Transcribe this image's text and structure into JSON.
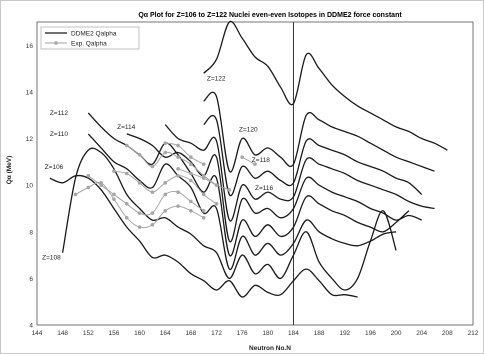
{
  "chart_data": {
    "type": "line",
    "title": "Qα Plot for Z=106 to Z=122 Nuclei even-even Isotopes in DDME2 force constant",
    "xlabel": "Neutron No.N",
    "ylabel": "Qα (MeV)",
    "xlim": [
      144,
      212
    ],
    "ylim": [
      4,
      17
    ],
    "xticks": [
      144,
      148,
      152,
      156,
      160,
      164,
      168,
      172,
      176,
      180,
      184,
      188,
      192,
      196,
      200,
      204,
      208,
      212
    ],
    "yticks": [
      4,
      6,
      8,
      10,
      12,
      14,
      16
    ],
    "grid": "on",
    "legend_position": "top-left",
    "legend": [
      "DDME2 Qalpha",
      "Exp. Qalpha"
    ],
    "reference_line_x": 184,
    "colors": {
      "ddme2": "#1a1a1a",
      "exp": "#a6a6a6",
      "grid": "#d9d9d9",
      "axis": "#555555"
    },
    "series": [
      {
        "name": "DDME2 Qalpha",
        "label": "Z=108",
        "x": [
          148,
          150,
          152,
          154,
          156,
          158,
          160,
          162,
          164,
          166,
          168,
          170,
          172,
          174,
          176,
          178,
          180,
          182,
          184,
          186,
          188,
          190,
          192,
          194,
          196,
          198,
          200
        ],
        "y": [
          7.1,
          10.3,
          11.5,
          11.4,
          10.7,
          9.6,
          9.0,
          8.5,
          8.6,
          8.2,
          7.9,
          7.4,
          7.1,
          6.0,
          7.0,
          6.2,
          6.6,
          6.0,
          7.0,
          8.0,
          6.7,
          6.0,
          5.5,
          6.0,
          7.6,
          8.9,
          7.2
        ]
      },
      {
        "name": "DDME2 Qalpha",
        "label": "Z=106",
        "x": [
          146,
          148,
          150,
          152,
          154,
          156,
          158,
          160,
          162,
          164,
          166,
          168,
          170,
          172,
          174,
          176,
          178,
          180,
          182,
          184,
          186,
          188,
          190,
          192,
          194
        ],
        "y": [
          10.3,
          10.1,
          10.4,
          10.3,
          9.8,
          9.0,
          8.2,
          7.6,
          6.9,
          7.0,
          6.7,
          6.2,
          5.9,
          5.5,
          5.9,
          5.2,
          5.7,
          5.4,
          5.3,
          5.9,
          6.4,
          5.9,
          5.3,
          5.3,
          5.2
        ]
      },
      {
        "name": "DDME2 Qalpha",
        "label": "Z=110",
        "x": [
          152,
          154,
          156,
          158,
          160,
          162,
          164,
          166,
          168,
          170,
          172,
          174,
          176,
          178,
          180,
          182,
          184,
          186,
          188,
          190,
          192,
          194,
          196,
          198,
          200
        ],
        "y": [
          12.2,
          11.6,
          11.0,
          10.7,
          10.2,
          9.9,
          10.9,
          10.4,
          9.9,
          8.8,
          9.0,
          6.4,
          7.8,
          7.0,
          7.5,
          7.0,
          7.5,
          8.5,
          8.0,
          7.7,
          7.5,
          7.4,
          7.6,
          7.9,
          8.0
        ]
      },
      {
        "name": "DDME2 Qalpha",
        "label": "Z=112",
        "x": [
          152,
          154,
          156,
          158,
          160,
          162,
          164,
          166,
          168,
          170,
          172,
          174,
          176,
          178,
          180,
          182,
          184,
          186,
          188,
          190,
          192,
          194,
          196,
          198,
          200,
          202
        ],
        "y": [
          13.1,
          12.5,
          12.0,
          11.7,
          11.3,
          10.9,
          11.8,
          11.3,
          10.5,
          9.7,
          10.3,
          7.0,
          8.5,
          7.8,
          8.3,
          7.8,
          8.2,
          9.5,
          9.2,
          8.9,
          8.7,
          8.4,
          8.2,
          8.0,
          8.4,
          8.9
        ]
      },
      {
        "name": "DDME2 Qalpha",
        "label": "Z=114",
        "x": [
          158,
          160,
          162,
          164,
          166,
          168,
          170,
          172,
          174,
          176,
          178,
          180,
          182,
          184,
          186,
          188,
          190,
          192,
          194,
          196,
          198,
          200,
          202,
          204
        ],
        "y": [
          12.2,
          12.0,
          11.7,
          11.2,
          11.4,
          11.0,
          10.4,
          11.2,
          7.6,
          9.4,
          8.8,
          9.0,
          8.6,
          9.0,
          10.3,
          10.0,
          9.7,
          9.5,
          9.3,
          9.0,
          8.8,
          8.5,
          8.7,
          8.5
        ]
      },
      {
        "name": "DDME2 Qalpha",
        "label": "Z=116",
        "x": [
          164,
          166,
          168,
          170,
          172,
          174,
          176,
          178,
          180,
          182,
          184,
          186,
          188,
          190,
          192,
          194,
          196,
          198,
          200,
          202,
          204,
          206
        ],
        "y": [
          12.6,
          12.0,
          11.8,
          11.5,
          11.9,
          8.5,
          10.0,
          9.4,
          9.7,
          9.4,
          9.5,
          11.1,
          10.9,
          10.7,
          10.5,
          10.2,
          10.0,
          9.8,
          9.6,
          9.3,
          9.1,
          9.0
        ]
      },
      {
        "name": "DDME2 Qalpha",
        "label": "Z=118",
        "x": [
          170,
          172,
          174,
          176,
          178,
          180,
          182,
          184,
          186,
          188,
          190,
          192,
          194,
          196,
          198,
          200,
          202,
          204
        ],
        "y": [
          12.6,
          12.8,
          9.6,
          10.8,
          10.3,
          10.6,
          10.2,
          10.1,
          11.9,
          11.7,
          11.5,
          11.3,
          11.0,
          10.8,
          10.6,
          10.3,
          10.1,
          9.6
        ]
      },
      {
        "name": "DDME2 Qalpha",
        "label": "Z=120",
        "x": [
          170,
          172,
          174,
          176,
          178,
          180,
          182,
          184,
          186,
          188,
          190,
          192,
          194,
          196,
          198,
          200,
          202,
          204,
          206
        ],
        "y": [
          13.6,
          13.8,
          10.6,
          12.0,
          11.3,
          11.6,
          11.2,
          10.9,
          13.0,
          12.8,
          12.5,
          12.3,
          12.1,
          11.8,
          11.5,
          11.2,
          11.0,
          10.8,
          10.6
        ]
      },
      {
        "name": "DDME2 Qalpha",
        "label": "Z=122",
        "x": [
          170,
          172,
          174,
          176,
          178,
          180,
          182,
          184,
          186,
          188,
          190,
          192,
          194,
          196,
          198,
          200,
          202,
          204,
          206,
          208
        ],
        "y": [
          14.8,
          15.4,
          17.0,
          16.3,
          15.5,
          15.1,
          14.2,
          13.5,
          15.6,
          15.0,
          14.3,
          13.8,
          13.4,
          13.1,
          12.8,
          12.5,
          12.3,
          12.0,
          11.8,
          11.5
        ]
      },
      {
        "name": "Exp. Qalpha",
        "label": "",
        "exp": true,
        "x": [
          150,
          152,
          154,
          156,
          158,
          160,
          162,
          164,
          166,
          168,
          170
        ],
        "y": [
          9.6,
          9.9,
          10.1,
          9.4,
          8.6,
          8.2,
          8.3,
          8.9,
          9.1,
          8.9,
          8.6
        ]
      },
      {
        "name": "Exp. Qalpha",
        "label": "",
        "exp": true,
        "x": [
          152,
          154,
          156,
          158,
          160,
          162,
          164,
          166,
          168,
          170
        ],
        "y": [
          10.4,
          10.0,
          9.6,
          9.2,
          8.8,
          8.8,
          9.6,
          9.7,
          9.3,
          8.9
        ]
      },
      {
        "name": "Exp. Qalpha",
        "label": "",
        "exp": true,
        "x": [
          156,
          158,
          160,
          162,
          164,
          166,
          168,
          170,
          172
        ],
        "y": [
          10.6,
          10.5,
          10.1,
          9.7,
          10.1,
          10.4,
          10.2,
          9.6,
          9.2
        ]
      },
      {
        "name": "Exp. Qalpha",
        "label": "",
        "exp": true,
        "x": [
          158,
          160,
          162,
          164,
          166,
          168,
          170,
          172
        ],
        "y": [
          11.7,
          11.3,
          10.8,
          11.4,
          11.2,
          10.9,
          10.4,
          10.0
        ]
      },
      {
        "name": "Exp. Qalpha",
        "label": "",
        "exp": true,
        "x": [
          164,
          166,
          168,
          170
        ],
        "y": [
          11.8,
          11.7,
          11.2,
          10.9
        ]
      },
      {
        "name": "Exp. Qalpha",
        "label": "",
        "exp": true,
        "x": [
          166,
          168,
          170,
          172,
          174
        ],
        "y": [
          10.7,
          10.5,
          10.3,
          10.0,
          9.8
        ]
      },
      {
        "name": "Exp. Qalpha",
        "label": "",
        "exp": true,
        "x": [
          176,
          178
        ],
        "y": [
          11.2,
          10.9
        ]
      }
    ],
    "series_labels": [
      {
        "text": "Z=122",
        "x": 170.5,
        "y": 14.5
      },
      {
        "text": "Z=120",
        "x": 175.5,
        "y": 12.3
      },
      {
        "text": "Z=118",
        "x": 177.5,
        "y": 11.0
      },
      {
        "text": "Z=116",
        "x": 178.0,
        "y": 9.8
      },
      {
        "text": "Z=114",
        "x": 156.5,
        "y": 12.4
      },
      {
        "text": "Z=112",
        "x": 146.0,
        "y": 13.0
      },
      {
        "text": "Z=110",
        "x": 146.0,
        "y": 12.1
      },
      {
        "text": "Z=106",
        "x": 145.2,
        "y": 10.7
      },
      {
        "text": "Z=108",
        "x": 144.8,
        "y": 6.8
      }
    ]
  }
}
